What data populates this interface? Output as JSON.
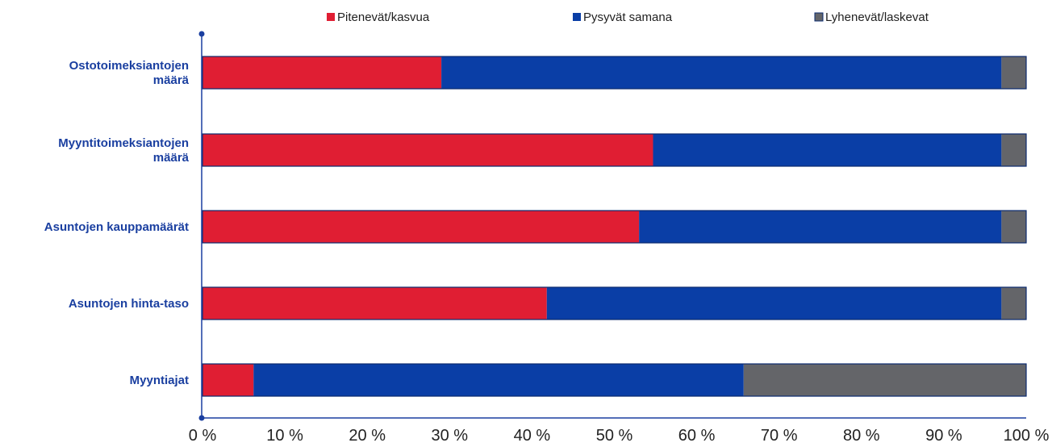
{
  "chart_data": {
    "type": "bar",
    "orientation": "horizontal",
    "stacked": "percent",
    "categories": [
      [
        "Ostotoimeksiantojen",
        "määrä"
      ],
      [
        "Myyntitoimeksiantojen",
        "määrä"
      ],
      [
        "Asuntojen kauppamäärät"
      ],
      [
        "Asuntojen hinta-taso"
      ],
      [
        "Myyntiajat"
      ]
    ],
    "series": [
      {
        "name": "Pitenevät/kasvua",
        "color": "#e01e33",
        "values": [
          29,
          54.7,
          53,
          41.8,
          6.2
        ]
      },
      {
        "name": "Pysyvät samana",
        "color": "#0a3ea6",
        "values": [
          68,
          42.3,
          44,
          55.2,
          59.5
        ]
      },
      {
        "name": "Lyhenevät/laskevat",
        "color": "#646569",
        "values": [
          3,
          3,
          3,
          3,
          34.3
        ]
      }
    ],
    "xlim": [
      0,
      100
    ],
    "xticks": [
      "0 %",
      "10 %",
      "20 %",
      "30 %",
      "40 %",
      "50 %",
      "60 %",
      "70 %",
      "80 %",
      "90 %",
      "100 %"
    ],
    "legend_position": "top",
    "grid": false,
    "title": "",
    "xlabel": "",
    "ylabel": "",
    "axis_color": "#1a3fa0",
    "bar_outline_color": "#0a2a6e"
  }
}
